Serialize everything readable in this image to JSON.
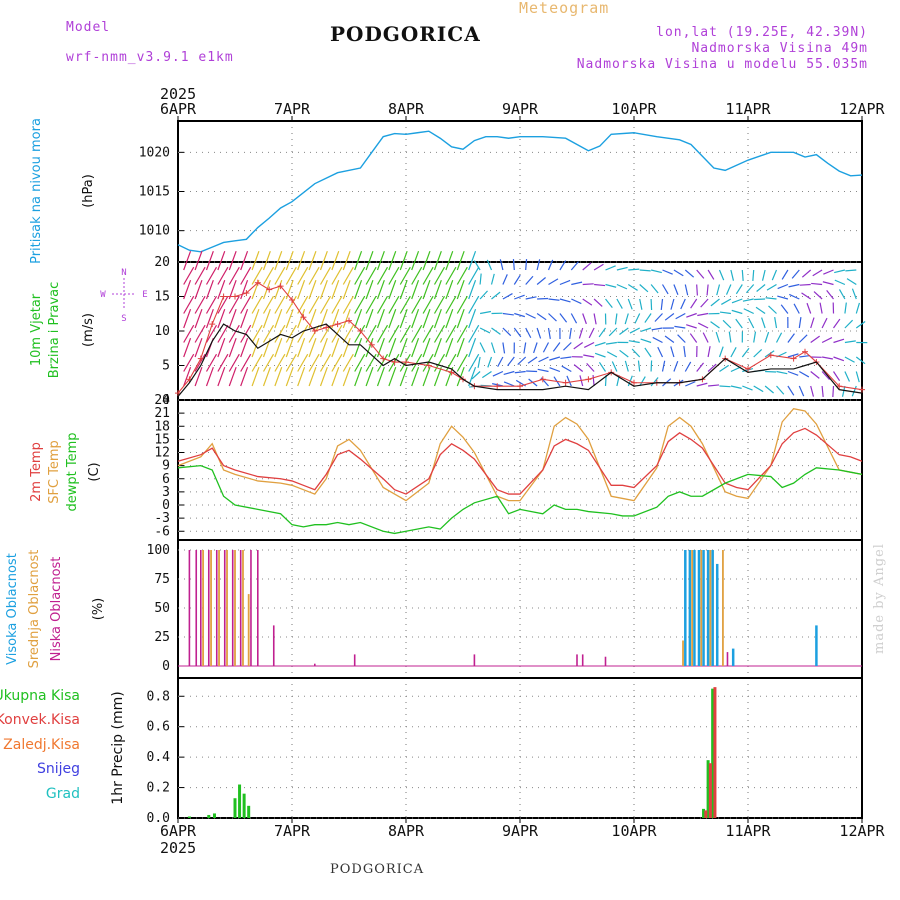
{
  "header": {
    "model_label": "Model",
    "model_name": "wrf-nmm_v3.9.1 e1km",
    "title": "PODGORICA",
    "meteogram_label": "Meteogram",
    "coords": "lon,lat (19.25E, 42.39N)",
    "elevation": "Nadmorska Visina 49m",
    "elevation_model": "Nadmorska Visina u modelu 55.035m"
  },
  "footer": {
    "station": "PODGORICA",
    "credit": "made by Angel"
  },
  "colors": {
    "pressure": "#1ca0e0",
    "total_precip": "#20c020",
    "convective": "#e04040",
    "frozen": "#f07830",
    "snow": "#4040e0",
    "hail": "#20c0c0",
    "temp2m": "#e04040",
    "sfc_temp": "#e0a040",
    "dewpt": "#20c020",
    "high_cloud": "#1ca0e0",
    "mid_cloud": "#e0a040",
    "low_cloud": "#c02090",
    "label_purple": "#b040d8"
  },
  "time_axis": {
    "year": "2025",
    "ticks": [
      "6APR",
      "7APR",
      "8APR",
      "9APR",
      "10APR",
      "11APR",
      "12APR"
    ]
  },
  "chart_data": [
    {
      "type": "line",
      "ylabel_name": "Pritisak na nivou mora",
      "ylabel_unit": "(hPa)",
      "yticks": [
        1010,
        1015,
        1020
      ],
      "ylim": [
        1006,
        1024
      ],
      "x": [
        0,
        0.1,
        0.2,
        0.3,
        0.4,
        0.5,
        0.6,
        0.7,
        0.8,
        0.9,
        1.0,
        1.2,
        1.4,
        1.6,
        1.7,
        1.8,
        1.9,
        2.0,
        2.1,
        2.2,
        2.3,
        2.4,
        2.5,
        2.6,
        2.7,
        2.8,
        2.9,
        3.0,
        3.2,
        3.4,
        3.6,
        3.7,
        3.8,
        4.0,
        4.2,
        4.4,
        4.5,
        4.6,
        4.7,
        4.8,
        5.0,
        5.2,
        5.4,
        5.5,
        5.6,
        5.7,
        5.8,
        5.9,
        6.0
      ],
      "series": [
        {
          "name": "Pritisak na nivou mora",
          "values": [
            1008.2,
            1007.5,
            1007.3,
            1007.9,
            1008.5,
            1008.7,
            1008.9,
            1010.4,
            1011.6,
            1012.9,
            1013.7,
            1016.0,
            1017.4,
            1018.0,
            1020.0,
            1022.0,
            1022.4,
            1022.3,
            1022.5,
            1022.7,
            1021.8,
            1020.7,
            1020.4,
            1021.5,
            1022.0,
            1022.0,
            1021.8,
            1022.0,
            1022.0,
            1021.8,
            1020.2,
            1020.8,
            1022.3,
            1022.5,
            1022.0,
            1021.6,
            1021.0,
            1019.5,
            1018.0,
            1017.7,
            1019.0,
            1020.0,
            1020.0,
            1019.4,
            1019.7,
            1018.6,
            1017.6,
            1017.0,
            1017.1
          ]
        }
      ]
    },
    {
      "type": "line",
      "ylabel_name_1": "10m Vjetar",
      "ylabel_name_2": "Brzina i Pravac",
      "ylabel_unit": "(m/s)",
      "compass": [
        "N",
        "E",
        "W",
        "S"
      ],
      "yticks": [
        0,
        5,
        10,
        15,
        20
      ],
      "ylim": [
        0,
        20
      ],
      "x": [
        0.0,
        0.1,
        0.2,
        0.3,
        0.4,
        0.5,
        0.6,
        0.7,
        0.8,
        0.9,
        1.0,
        1.1,
        1.2,
        1.3,
        1.4,
        1.5,
        1.6,
        1.7,
        1.8,
        1.9,
        2.0,
        2.2,
        2.4,
        2.5,
        2.6,
        2.8,
        3.0,
        3.2,
        3.4,
        3.6,
        3.8,
        4.0,
        4.2,
        4.4,
        4.6,
        4.8,
        5.0,
        5.2,
        5.4,
        5.5,
        5.6,
        5.8,
        6.0
      ],
      "series": [
        {
          "name": "wind_speed",
          "values": [
            0.5,
            2.5,
            5.0,
            8.5,
            11.0,
            10.0,
            9.5,
            7.5,
            8.5,
            9.5,
            9.0,
            10.0,
            10.5,
            11.0,
            9.5,
            8.0,
            8.0,
            6.5,
            5.0,
            6.0,
            5.0,
            5.5,
            4.5,
            3.0,
            2.0,
            1.5,
            1.5,
            1.5,
            2.0,
            1.5,
            4.0,
            2.0,
            2.5,
            2.5,
            3.0,
            6.0,
            4.0,
            4.5,
            4.5,
            5.0,
            5.5,
            1.5,
            1.0
          ]
        },
        {
          "name": "gust",
          "values": [
            1.0,
            3.0,
            6.0,
            11.0,
            15.0,
            15.0,
            15.5,
            17.0,
            16.0,
            16.5,
            14.5,
            12.0,
            10.0,
            10.5,
            11.0,
            11.5,
            10.0,
            8.0,
            6.0,
            5.5,
            5.5,
            5.0,
            4.0,
            3.0,
            2.0,
            2.0,
            2.0,
            3.0,
            2.5,
            3.0,
            4.0,
            2.5,
            2.5,
            2.5,
            3.0,
            6.0,
            4.5,
            6.5,
            6.0,
            7.0,
            5.5,
            2.0,
            1.5
          ]
        }
      ]
    },
    {
      "type": "line",
      "ylabel_names": [
        "2m Temp",
        "SFC Temp",
        "dewpt Temp"
      ],
      "ylabel_unit": "(C)",
      "yticks": [
        -6,
        -3,
        0,
        3,
        6,
        9,
        12,
        15,
        18,
        21,
        24
      ],
      "ylim": [
        -8,
        24
      ],
      "x": [
        0,
        0.2,
        0.3,
        0.4,
        0.5,
        0.7,
        0.9,
        1.0,
        1.1,
        1.2,
        1.3,
        1.4,
        1.5,
        1.6,
        1.8,
        1.9,
        2.0,
        2.2,
        2.3,
        2.4,
        2.5,
        2.6,
        2.8,
        2.9,
        3.0,
        3.2,
        3.3,
        3.4,
        3.5,
        3.6,
        3.8,
        3.9,
        4.0,
        4.2,
        4.3,
        4.4,
        4.5,
        4.6,
        4.8,
        4.9,
        5.0,
        5.2,
        5.3,
        5.4,
        5.5,
        5.6,
        5.8,
        5.9,
        6.0
      ],
      "series": [
        {
          "name": "2m Temp",
          "values": [
            10.0,
            11.5,
            13.0,
            9.0,
            8.0,
            6.5,
            6.0,
            5.5,
            4.5,
            3.5,
            7.0,
            11.5,
            12.5,
            10.5,
            6.0,
            3.5,
            2.5,
            6.0,
            11.5,
            14.0,
            12.5,
            10.5,
            3.5,
            2.5,
            2.5,
            8.0,
            13.5,
            15.0,
            14.0,
            12.5,
            4.5,
            4.5,
            4.0,
            9.0,
            14.5,
            16.5,
            15.0,
            13.0,
            5.0,
            4.0,
            3.5,
            9.0,
            14.0,
            16.5,
            17.5,
            16.0,
            11.5,
            11.0,
            10.0
          ]
        },
        {
          "name": "SFC Temp",
          "values": [
            9.0,
            11.0,
            14.0,
            8.0,
            7.0,
            5.5,
            5.0,
            4.5,
            3.5,
            2.5,
            6.0,
            13.5,
            15.0,
            12.5,
            4.0,
            2.5,
            1.0,
            5.0,
            14.0,
            18.0,
            15.5,
            12.0,
            2.0,
            1.0,
            1.0,
            8.0,
            18.0,
            20.0,
            18.5,
            15.0,
            2.0,
            1.5,
            1.0,
            8.5,
            18.0,
            20.0,
            18.0,
            14.0,
            3.0,
            2.0,
            1.5,
            9.0,
            19.0,
            22.0,
            21.5,
            18.5,
            8.0,
            7.5,
            7.0
          ]
        },
        {
          "name": "dewpt Temp",
          "values": [
            8.5,
            9.0,
            8.0,
            2.0,
            0.0,
            -1.0,
            -2.0,
            -4.5,
            -5.0,
            -4.5,
            -4.5,
            -4.0,
            -4.5,
            -4.0,
            -6.0,
            -6.5,
            -6.0,
            -5.0,
            -5.5,
            -3.0,
            -1.0,
            0.5,
            2.0,
            -2.0,
            -1.0,
            -2.0,
            0.0,
            -1.0,
            -1.0,
            -1.5,
            -2.0,
            -2.5,
            -2.5,
            -0.5,
            2.0,
            3.0,
            2.0,
            2.0,
            5.0,
            6.0,
            7.0,
            6.5,
            4.0,
            5.0,
            7.0,
            8.5,
            8.0,
            7.5,
            7.0
          ]
        }
      ]
    },
    {
      "type": "bar",
      "ylabel_names": [
        "Visoka Oblacnost",
        "Srednja Oblacnost",
        "Niska Oblacnost"
      ],
      "ylabel_unit": "(%)",
      "yticks": [
        0,
        25,
        50,
        75,
        100
      ],
      "ylim": [
        0,
        100
      ],
      "series": [
        {
          "name": "Visoka Oblacnost",
          "x": [
            4.45,
            4.49,
            4.53,
            4.57,
            4.61,
            4.65,
            4.69,
            4.73,
            4.87,
            5.6
          ],
          "values": [
            100,
            100,
            100,
            100,
            100,
            100,
            100,
            88,
            15,
            35
          ]
        },
        {
          "name": "Srednja Oblacnost",
          "x": [
            0.22,
            0.29,
            0.36,
            0.43,
            0.5,
            0.57,
            0.62,
            4.43,
            4.51,
            4.59,
            4.67,
            4.78
          ],
          "values": [
            100,
            100,
            100,
            100,
            100,
            100,
            62,
            22,
            100,
            100,
            100,
            100
          ]
        },
        {
          "name": "Niska Oblacnost",
          "x": [
            0.1,
            0.16,
            0.2,
            0.27,
            0.34,
            0.41,
            0.48,
            0.55,
            0.64,
            0.7,
            0.84,
            1.2,
            1.55,
            2.6,
            3.5,
            3.55,
            3.75,
            4.82
          ],
          "values": [
            100,
            100,
            100,
            100,
            100,
            100,
            100,
            100,
            100,
            100,
            35,
            2,
            10,
            10,
            10,
            10,
            8,
            12
          ]
        }
      ]
    },
    {
      "type": "bar",
      "ylabel_names": [
        "Ukupna Kisa",
        "Konvek.Kisa",
        "Zaledj.Kisa",
        "Snijeg",
        "Grad"
      ],
      "ylabel_unit": "1hr Precip (mm)",
      "yticks": [
        0,
        0.2,
        0.4,
        0.6,
        0.8
      ],
      "ylim": [
        0,
        0.92
      ],
      "series": [
        {
          "name": "Ukupna Kisa",
          "x": [
            0.1,
            0.27,
            0.32,
            0.5,
            0.54,
            0.58,
            0.62,
            4.61,
            4.65,
            4.69
          ],
          "values": [
            0.01,
            0.02,
            0.03,
            0.13,
            0.22,
            0.16,
            0.08,
            0.06,
            0.38,
            0.85
          ]
        },
        {
          "name": "Konvek.Kisa",
          "x": [
            4.63,
            4.67,
            4.71
          ],
          "values": [
            0.05,
            0.36,
            0.86
          ]
        },
        {
          "name": "Zaledj.Kisa",
          "x": [],
          "values": []
        },
        {
          "name": "Snijeg",
          "x": [],
          "values": []
        },
        {
          "name": "Grad",
          "x": [],
          "values": []
        }
      ]
    }
  ]
}
